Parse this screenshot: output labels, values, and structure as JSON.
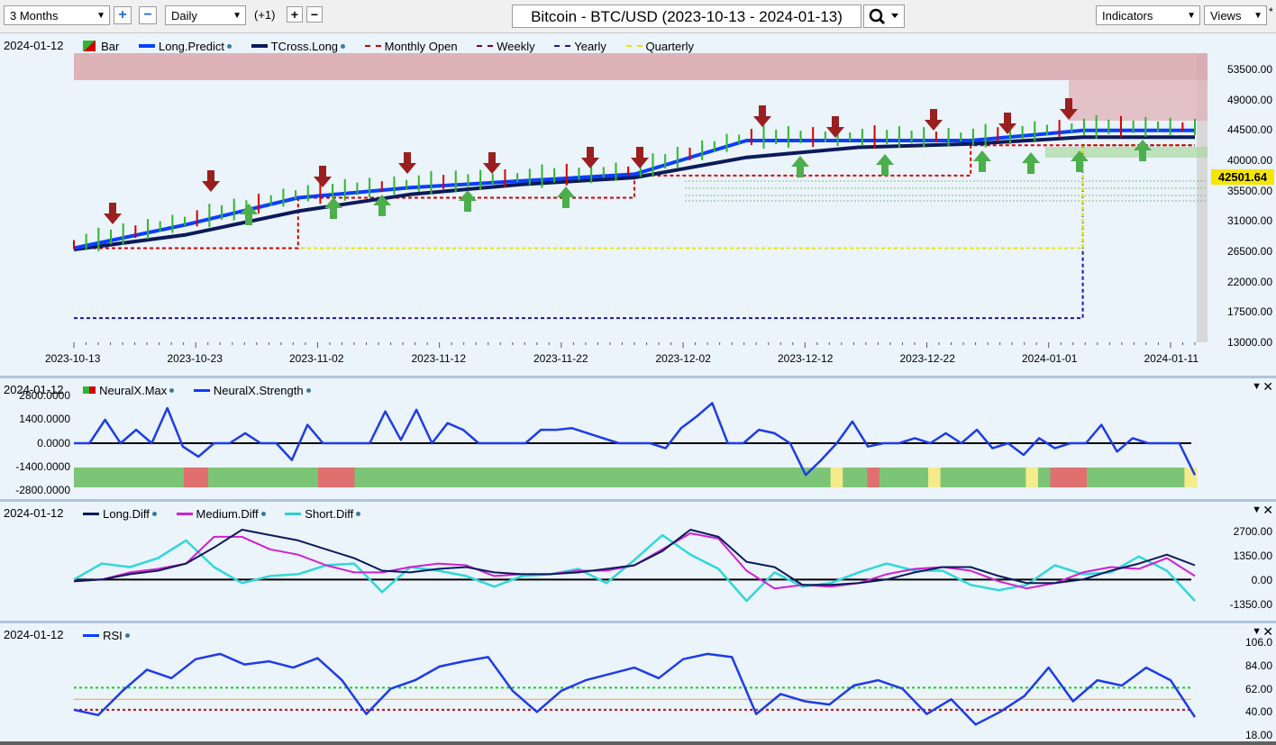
{
  "toolbar": {
    "range": "3 Months",
    "interval": "Daily",
    "offset": "(+1)",
    "title": "Bitcoin - BTC/USD (2023-10-13 - 2024-01-13)",
    "indicators": "Indicators",
    "views": "Views"
  },
  "price_panel": {
    "date": "2024-01-12",
    "legend": [
      "Bar",
      "Long.Predict",
      "TCross.Long",
      "Monthly Open",
      "Weekly",
      "Yearly",
      "Quarterly"
    ],
    "y_ticks": [
      "53500.00",
      "49000.00",
      "44500.00",
      "40000.00",
      "35500.00",
      "31000.00",
      "26500.00",
      "22000.00",
      "17500.00",
      "13000.00"
    ],
    "x_ticks": [
      "2023-10-13",
      "2023-10-23",
      "2023-11-02",
      "2023-11-12",
      "2023-11-22",
      "2023-12-02",
      "2023-12-12",
      "2023-12-22",
      "2024-01-01",
      "2024-01-11"
    ],
    "last_price": "42501.64"
  },
  "neural_panel": {
    "date": "2024-01-12",
    "legend": [
      "NeuralX.Max",
      "NeuralX.Strength"
    ],
    "y_ticks": [
      "2800.0000",
      "1400.0000",
      "0.0000",
      "-1400.0000",
      "-2800.0000"
    ]
  },
  "diff_panel": {
    "date": "2024-01-12",
    "legend": [
      "Long.Diff",
      "Medium.Diff",
      "Short.Diff"
    ],
    "y_ticks": [
      "2700.00",
      "1350.00",
      "0.00",
      "-1350.00"
    ]
  },
  "rsi_panel": {
    "date": "2024-01-12",
    "legend": [
      "RSI"
    ],
    "y_ticks": [
      "106.0",
      "84.00",
      "62.00",
      "40.00",
      "18.00"
    ]
  },
  "colors": {
    "long_predict": "#0a3fff",
    "tcross_long": "#0b1a5a",
    "monthly_open": "#d40000",
    "weekly": "#7a0030",
    "yearly": "#1a1aa0",
    "quarterly": "#e8e800",
    "panel_bg": "#ebf3fb",
    "up_bar": "#2fb52f",
    "down_bar": "#d40000"
  },
  "chart_data": [
    {
      "type": "line",
      "title": "Bitcoin - BTC/USD (2023-10-13 - 2024-01-13)",
      "x": [
        "2023-10-13",
        "2023-10-23",
        "2023-11-02",
        "2023-11-12",
        "2023-11-22",
        "2023-12-02",
        "2023-12-12",
        "2023-12-22",
        "2024-01-01",
        "2024-01-11",
        "2024-01-12"
      ],
      "series": [
        {
          "name": "Long.Predict",
          "values": [
            27000,
            30500,
            34500,
            36000,
            37000,
            38000,
            43000,
            43000,
            43000,
            44500,
            44500
          ]
        },
        {
          "name": "TCross.Long",
          "values": [
            26800,
            29000,
            32500,
            35000,
            36500,
            37500,
            40500,
            42000,
            42500,
            43500,
            43500
          ]
        },
        {
          "name": "Monthly Open",
          "values": [
            27000,
            27000,
            34500,
            34500,
            34500,
            37800,
            37800,
            37800,
            42300,
            42300,
            42300
          ]
        },
        {
          "name": "Yearly",
          "values": [
            16600,
            16600,
            16600,
            16600,
            16600,
            16600,
            16600,
            16600,
            16600,
            42300,
            42300
          ]
        },
        {
          "name": "Quarterly",
          "values": [
            27000,
            27000,
            27000,
            27000,
            27000,
            27000,
            27000,
            27000,
            27000,
            42300,
            42300
          ]
        }
      ],
      "ylim": [
        13000,
        56000
      ],
      "last_value": 42501.64
    },
    {
      "type": "line",
      "series": [
        {
          "name": "NeuralX.Strength",
          "values": [
            0,
            0,
            1400,
            0,
            800,
            0,
            2100,
            -200,
            -800,
            0,
            0,
            600,
            0,
            0,
            -1000,
            1100,
            0,
            0,
            0,
            0,
            1900,
            200,
            2000,
            0,
            1200,
            800,
            0,
            0,
            0,
            0,
            800,
            800,
            900,
            600,
            300,
            0,
            0,
            0,
            -300,
            900,
            1600,
            2400,
            0,
            0,
            800,
            600,
            0,
            -1900,
            -1000,
            0,
            1300,
            -200,
            0,
            0,
            300,
            0,
            600,
            0,
            800,
            -300,
            0,
            -700,
            300,
            -300,
            0,
            0,
            1100,
            -500,
            300,
            0,
            0,
            0,
            -1900
          ]
        }
      ],
      "ylim": [
        -2800,
        2800
      ]
    },
    {
      "type": "line",
      "series": [
        {
          "name": "Long.Diff",
          "values": [
            -100,
            0,
            300,
            500,
            900,
            1800,
            2800,
            2500,
            2200,
            1700,
            1200,
            500,
            400,
            600,
            700,
            400,
            300,
            300,
            400,
            600,
            800,
            1600,
            2800,
            2400,
            1000,
            700,
            -300,
            -300,
            -200,
            0,
            400,
            700,
            700,
            200,
            -200,
            -200,
            0,
            500,
            900,
            1400,
            800
          ]
        },
        {
          "name": "Medium.Diff",
          "values": [
            -100,
            0,
            400,
            600,
            900,
            2400,
            2400,
            1700,
            1400,
            800,
            400,
            400,
            700,
            900,
            800,
            200,
            300,
            300,
            500,
            500,
            800,
            1700,
            2600,
            2300,
            500,
            -500,
            -300,
            -400,
            -200,
            300,
            600,
            700,
            500,
            -100,
            -500,
            -200,
            400,
            700,
            600,
            1200,
            200
          ]
        },
        {
          "name": "Short.Diff",
          "values": [
            0,
            900,
            700,
            1200,
            2200,
            700,
            -200,
            200,
            300,
            800,
            900,
            -700,
            700,
            500,
            200,
            -400,
            200,
            300,
            600,
            -200,
            1100,
            2500,
            1400,
            600,
            -1200,
            400,
            -400,
            -200,
            400,
            900,
            500,
            500,
            -300,
            -600,
            -300,
            800,
            300,
            400,
            1300,
            500,
            -1200
          ]
        }
      ],
      "ylim": [
        -1350,
        2700
      ]
    },
    {
      "type": "line",
      "series": [
        {
          "name": "RSI",
          "values": [
            42,
            37,
            60,
            80,
            72,
            90,
            95,
            85,
            88,
            82,
            91,
            70,
            38,
            62,
            70,
            83,
            88,
            92,
            60,
            40,
            60,
            70,
            76,
            82,
            72,
            90,
            95,
            92,
            38,
            57,
            50,
            47,
            65,
            70,
            62,
            38,
            52,
            28,
            40,
            55,
            82,
            50,
            70,
            65,
            82,
            70,
            35
          ]
        }
      ],
      "ylim": [
        18,
        106
      ],
      "reference_lines": [
        63,
        52,
        42
      ]
    }
  ]
}
